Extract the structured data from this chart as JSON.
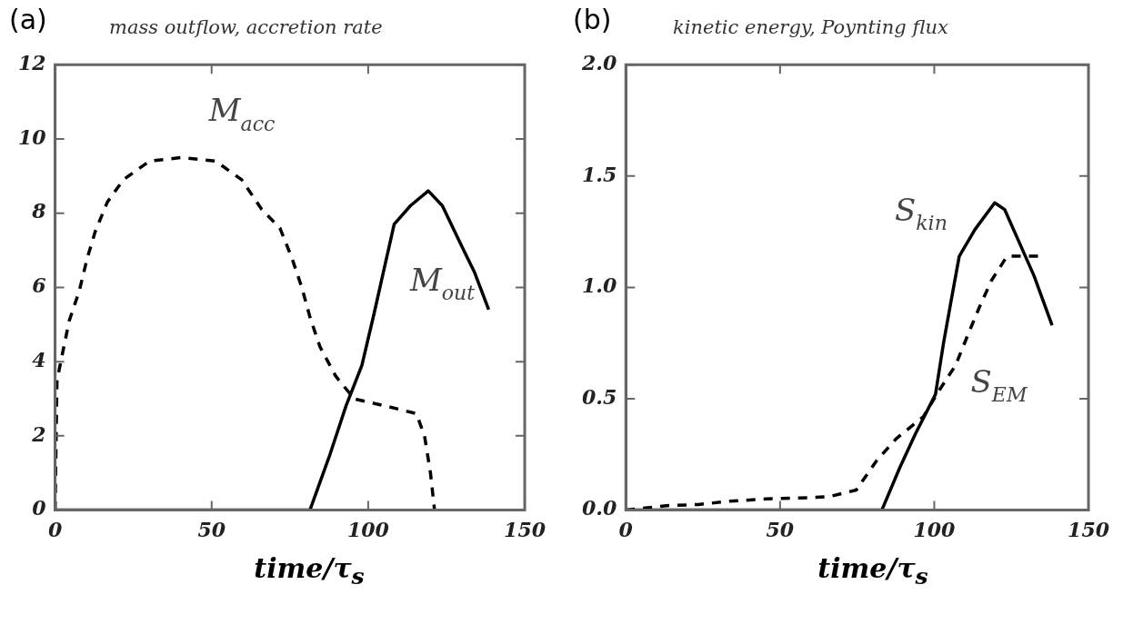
{
  "chart_data": [
    {
      "type": "line",
      "title": "mass outflow, accretion rate",
      "xlabel": "time/τ$_{s}$",
      "annotations": [
        "(a)"
      ],
      "xlim": [
        0,
        150
      ],
      "xticks": [
        0,
        50,
        100,
        150
      ],
      "ylim": [
        0,
        12
      ],
      "yticks": [
        0,
        2,
        4,
        6,
        8,
        10,
        12
      ],
      "grid": false,
      "legend": false,
      "series": [
        {
          "name": "M$_{acc}$",
          "color": "#000000",
          "line_style": "dashed",
          "x": [
            0,
            0.6,
            4.5,
            7.7,
            10.3,
            12.8,
            16.7,
            21.8,
            30.1,
            40.4,
            51.3,
            59.6,
            66,
            71.8,
            75.6,
            78.8,
            81.4,
            84.6,
            89.7,
            95.5,
            105.8,
            115.4,
            118,
            119.9,
            121.2
          ],
          "values": [
            0,
            3.5,
            5.1,
            5.9,
            6.8,
            7.5,
            8.3,
            8.9,
            9.4,
            9.5,
            9.4,
            8.9,
            8.1,
            7.6,
            6.8,
            6.0,
            5.2,
            4.4,
            3.6,
            3.0,
            2.8,
            2.6,
            2.0,
            1.0,
            0
          ]
        },
        {
          "name": "M$_{out}$",
          "color": "#000000",
          "line_style": "solid",
          "x": [
            0,
            40,
            81.4,
            87.8,
            92.9,
            98,
            101.9,
            105.1,
            108.3,
            113.5,
            119.2,
            123.7,
            128.8,
            134,
            138.5
          ],
          "values": [
            0,
            0,
            0,
            1.5,
            2.8,
            3.9,
            5.3,
            6.5,
            7.7,
            8.2,
            8.6,
            8.2,
            7.3,
            6.4,
            5.4
          ]
        }
      ]
    },
    {
      "type": "line",
      "title": "kinetic energy, Poynting flux",
      "xlabel": "time/τ$_{s}$",
      "annotations": [
        "(b)"
      ],
      "xlim": [
        0,
        150
      ],
      "xticks": [
        0,
        50,
        100,
        150
      ],
      "ylim": [
        0,
        2
      ],
      "yticks": [
        {
          "value": 0,
          "label": "0.0"
        },
        0.5,
        {
          "value": 1,
          "label": "1.0"
        },
        1.5,
        {
          "value": 2,
          "label": "2.0"
        }
      ],
      "grid": false,
      "legend": false,
      "series": [
        {
          "name": "S$_{kin}$",
          "color": "#000000",
          "line_style": "solid",
          "x": [
            0,
            40,
            83,
            88.8,
            93.8,
            100.4,
            103,
            105.6,
            108.1,
            113.2,
            119.6,
            122.8,
            127.3,
            132.4,
            138.2
          ],
          "values": [
            0,
            0,
            0,
            0.19,
            0.34,
            0.52,
            0.75,
            0.95,
            1.14,
            1.26,
            1.38,
            1.35,
            1.21,
            1.05,
            0.83
          ]
        },
        {
          "name": "S$_{EM}$",
          "color": "#000000",
          "line_style": "dashed",
          "x": [
            0,
            13.2,
            23.5,
            33.7,
            45.3,
            55.5,
            65.8,
            74.7,
            81.2,
            87.6,
            96.5,
            101.7,
            106.9,
            110.7,
            114.6,
            118.5,
            123.6,
            133.8
          ],
          "values": [
            0,
            0.02,
            0.025,
            0.04,
            0.05,
            0.054,
            0.06,
            0.09,
            0.22,
            0.32,
            0.42,
            0.54,
            0.65,
            0.78,
            0.91,
            1.03,
            1.14,
            1.14
          ]
        }
      ]
    }
  ]
}
